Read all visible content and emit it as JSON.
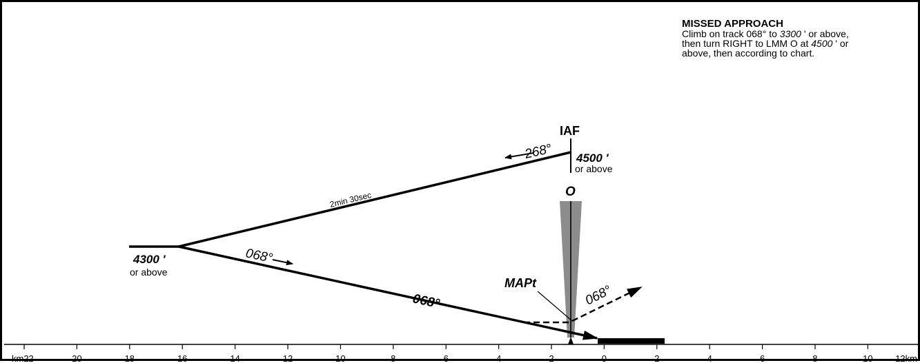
{
  "missed_approach": {
    "title": "MISSED APPROACH",
    "line1_a": "Climb on track 068° to ",
    "line1_alt": "3300",
    "line1_b": " ' or above,",
    "line2_a": "then turn RIGHT to LMM O at ",
    "line2_alt": "4500",
    "line2_b": " ' or",
    "line3": "above, then according to chart."
  },
  "fixes": {
    "iaf_label": "IAF",
    "iaf_altitude": "4500 '",
    "iaf_or_above": "or above",
    "lmm_label": "O",
    "mapt_label": "MAPt",
    "turn_altitude": "4300 '",
    "turn_or_above": "or above"
  },
  "tracks": {
    "outbound": "268°",
    "timing": "2min 30sec",
    "inbound_small": "068°",
    "inbound_large": "068°",
    "missed": "068°"
  },
  "scale": {
    "labels": [
      "km22",
      "20",
      "18",
      "16",
      "14",
      "12",
      "10",
      "8",
      "6",
      "4",
      "2",
      "0",
      "2",
      "4",
      "6",
      "8",
      "10",
      "12km"
    ]
  },
  "colors": {
    "ink": "#000000",
    "cone": "#8c8c8c"
  }
}
